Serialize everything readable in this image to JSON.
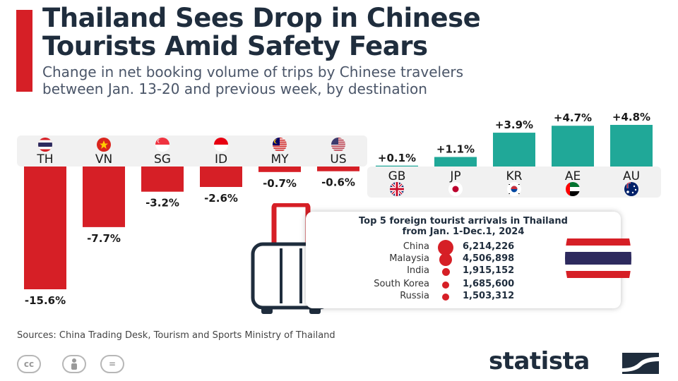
{
  "header": {
    "title_line1": "Thailand Sees Drop in Chinese",
    "title_line2": "Tourists Amid Safety Fears",
    "subtitle_line1": "Change in net booking volume of trips by Chinese travelers",
    "subtitle_line2": "between Jan. 13-20 and previous week, by destination"
  },
  "colors": {
    "accent": "#d61f26",
    "negative": "#d61f26",
    "positive": "#20a898",
    "title": "#1f2d3d",
    "panel": "#f1f1f1"
  },
  "chart_data": [
    {
      "type": "bar",
      "categories": [
        "TH",
        "VN",
        "SG",
        "ID",
        "MY",
        "US",
        "GB",
        "JP",
        "KR",
        "AE",
        "AU"
      ],
      "values": [
        -15.6,
        -7.7,
        -3.2,
        -2.6,
        -0.7,
        -0.6,
        0.1,
        1.1,
        3.9,
        4.7,
        4.8
      ],
      "value_labels": [
        "-15.6%",
        "-7.7%",
        "-3.2%",
        "-2.6%",
        "-0.7%",
        "-0.6%",
        "+0.1%",
        "+1.1%",
        "+3.9%",
        "+4.7%",
        "+4.8%"
      ],
      "flags": [
        "flag-thailand-icon",
        "flag-vietnam-icon",
        "flag-singapore-icon",
        "flag-indonesia-icon",
        "flag-malaysia-icon",
        "flag-usa-icon",
        "flag-uk-icon",
        "flag-japan-icon",
        "flag-south-korea-icon",
        "flag-uae-icon",
        "flag-australia-icon"
      ],
      "title": "",
      "xlabel": "",
      "ylabel": "",
      "grid": false,
      "legend": "none"
    },
    {
      "type": "table",
      "title_line1": "Top 5 foreign tourist arrivals in Thailand",
      "title_line2": "from Jan. 1-Dec.1, 2024",
      "rows": [
        {
          "country": "China",
          "value": 6214226,
          "label": "6,214,226"
        },
        {
          "country": "Malaysia",
          "value": 4506898,
          "label": "4,506,898"
        },
        {
          "country": "India",
          "value": 1915152,
          "label": "1,915,152"
        },
        {
          "country": "South Korea",
          "value": 1685600,
          "label": "1,685,600"
        },
        {
          "country": "Russia",
          "value": 1503312,
          "label": "1,503,312"
        }
      ]
    }
  ],
  "icons": {
    "suitcase": "suitcase-icon",
    "thai_flag": "flag-thailand-icon",
    "license": [
      "cc-icon",
      "attribution-icon",
      "no-derivatives-icon"
    ],
    "logo": "statista-logo-icon"
  },
  "footer": {
    "sources": "Sources: China Trading Desk, Tourism and Sports Ministry of Thailand",
    "cc_label": "cc",
    "eq_label": "=",
    "logo_text": "statista"
  }
}
